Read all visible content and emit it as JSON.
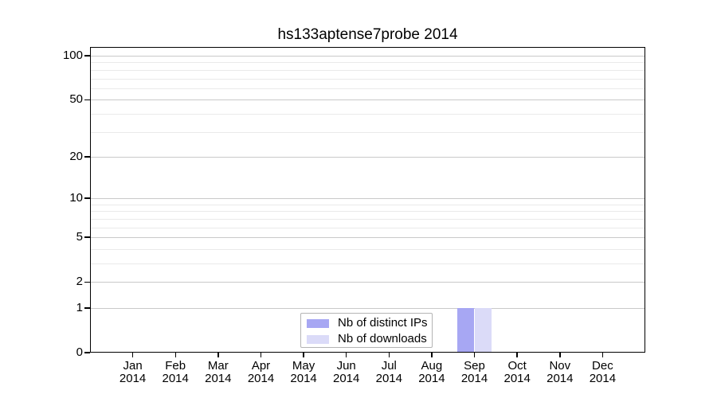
{
  "chart_data": {
    "type": "bar",
    "title": "hs133aptense7probe 2014",
    "x": {
      "months": [
        "Jan",
        "Feb",
        "Mar",
        "Apr",
        "May",
        "Jun",
        "Jul",
        "Aug",
        "Sep",
        "Oct",
        "Nov",
        "Dec"
      ],
      "year": "2014"
    },
    "y_axis": {
      "scale": "log1p",
      "tick_values": [
        0,
        1,
        2,
        5,
        10,
        20,
        50,
        100
      ],
      "minor_grid_values": [
        3,
        4,
        6,
        7,
        8,
        9,
        30,
        40,
        60,
        70,
        80,
        90
      ],
      "ylim": [
        0,
        115
      ]
    },
    "series": [
      {
        "name": "Nb of distinct IPs",
        "color": "#a7a7f3",
        "values": [
          0,
          0,
          0,
          0,
          0,
          0,
          0,
          0,
          1,
          0,
          0,
          0
        ]
      },
      {
        "name": "Nb of downloads",
        "color": "#dbdbf8",
        "values": [
          0,
          0,
          0,
          0,
          0,
          0,
          0,
          0,
          1,
          0,
          0,
          0
        ]
      }
    ],
    "legend": {
      "position": "bottom-center",
      "border_color": "#b4b4b4"
    },
    "grid": {
      "major_color": "#c9c9c9",
      "minor_color": "#eaeaea",
      "grid_on": true
    },
    "axis_color": "#000000",
    "background_color": "#ffffff"
  }
}
